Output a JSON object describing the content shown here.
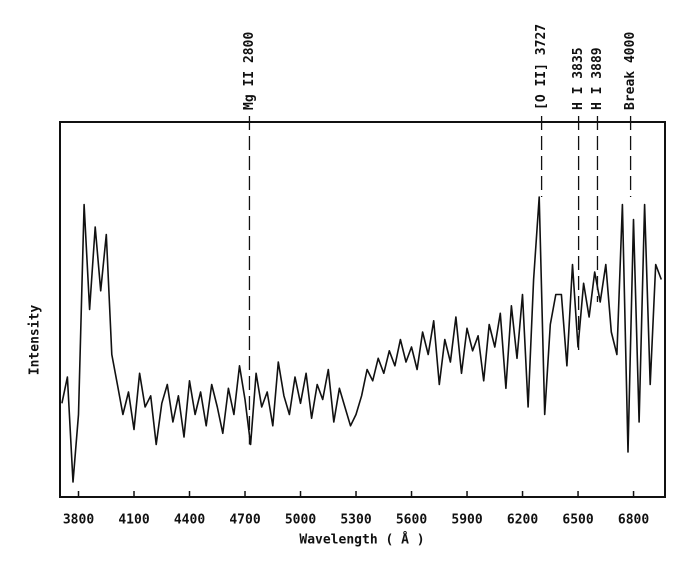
{
  "chart_data": {
    "type": "line",
    "xlabel": "Wavelength ( Å )",
    "ylabel": "Intensity",
    "color": "#111111",
    "xlim": [
      3700,
      6970
    ],
    "ylim": [
      0,
      100
    ],
    "xticks": [
      3800,
      4100,
      4400,
      4700,
      5000,
      5300,
      5600,
      5900,
      6200,
      6500,
      6800
    ],
    "annotations": [
      {
        "label": "Mg II 2800",
        "x": 4724,
        "y": 14
      },
      {
        "label": "[O II] 3727",
        "x": 6303,
        "y": 80
      },
      {
        "label": "H I 3835",
        "x": 6503,
        "y": 39
      },
      {
        "label": "H I 3889",
        "x": 6605,
        "y": 52
      },
      {
        "label": "Break 4000",
        "x": 6784,
        "y": 80
      }
    ],
    "x": [
      3710,
      3740,
      3770,
      3800,
      3830,
      3860,
      3890,
      3920,
      3950,
      3980,
      4010,
      4040,
      4070,
      4100,
      4130,
      4160,
      4190,
      4220,
      4250,
      4280,
      4310,
      4340,
      4370,
      4400,
      4430,
      4460,
      4490,
      4520,
      4550,
      4580,
      4610,
      4640,
      4670,
      4700,
      4730,
      4760,
      4790,
      4820,
      4850,
      4880,
      4910,
      4940,
      4970,
      5000,
      5030,
      5060,
      5090,
      5120,
      5150,
      5180,
      5210,
      5240,
      5270,
      5300,
      5330,
      5360,
      5390,
      5420,
      5450,
      5480,
      5510,
      5540,
      5570,
      5600,
      5630,
      5660,
      5690,
      5720,
      5750,
      5780,
      5810,
      5840,
      5870,
      5900,
      5930,
      5960,
      5990,
      6020,
      6050,
      6080,
      6110,
      6140,
      6170,
      6200,
      6230,
      6260,
      6290,
      6320,
      6350,
      6380,
      6410,
      6440,
      6470,
      6500,
      6530,
      6560,
      6590,
      6620,
      6650,
      6680,
      6710,
      6740,
      6770,
      6800,
      6830,
      6860,
      6890,
      6920,
      6950
    ],
    "values": [
      25,
      32,
      4,
      22,
      78,
      50,
      72,
      55,
      70,
      38,
      30,
      22,
      28,
      18,
      33,
      24,
      27,
      14,
      25,
      30,
      20,
      27,
      16,
      31,
      22,
      28,
      19,
      30,
      24,
      17,
      29,
      22,
      35,
      26,
      14,
      33,
      24,
      28,
      19,
      36,
      27,
      22,
      32,
      25,
      33,
      21,
      30,
      26,
      34,
      20,
      29,
      24,
      19,
      22,
      27,
      34,
      31,
      37,
      33,
      39,
      35,
      42,
      36,
      40,
      34,
      44,
      38,
      47,
      30,
      42,
      36,
      48,
      33,
      45,
      39,
      43,
      31,
      46,
      40,
      49,
      29,
      51,
      37,
      54,
      24,
      58,
      80,
      22,
      46,
      54,
      54,
      35,
      62,
      40,
      57,
      48,
      60,
      52,
      62,
      44,
      38,
      78,
      12,
      74,
      20,
      78,
      30,
      62,
      58
    ]
  }
}
